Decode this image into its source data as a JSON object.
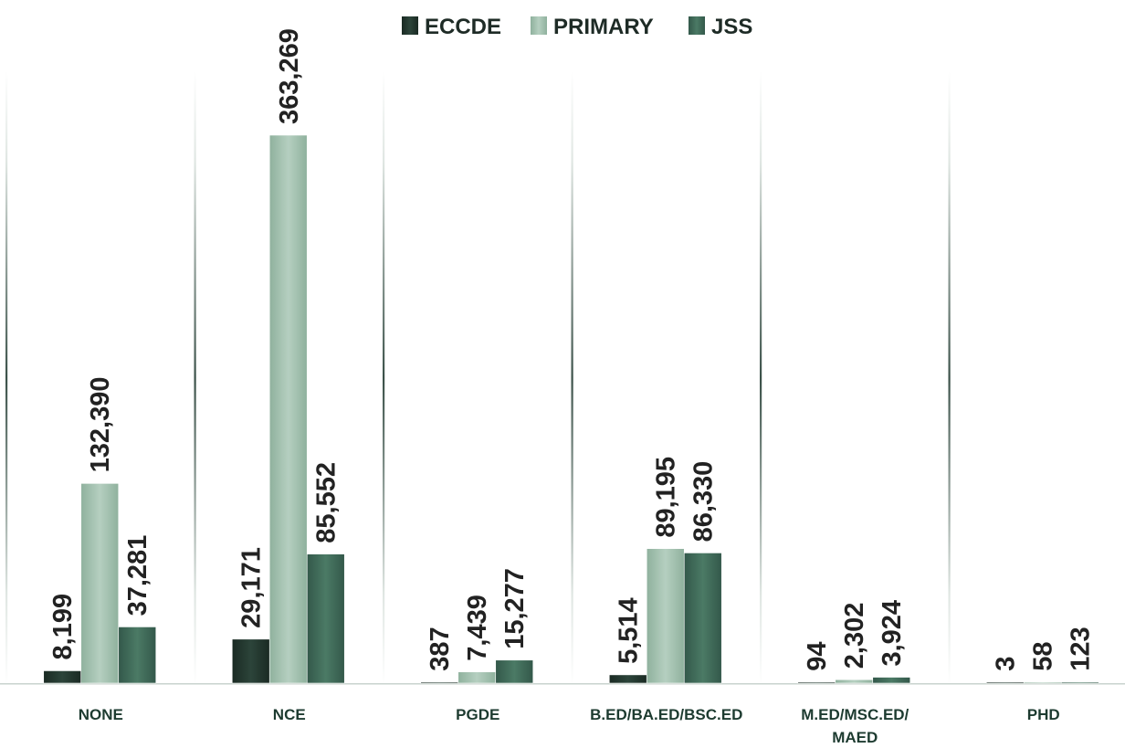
{
  "chart_data": {
    "type": "bar",
    "categories": [
      "NONE",
      "NCE",
      "PGDE",
      "B.ED/BA.ED/BSC.ED",
      "M.ED/MSC.ED/ MAED",
      "PHD"
    ],
    "category_lines": [
      [
        "NONE"
      ],
      [
        "NCE"
      ],
      [
        "PGDE"
      ],
      [
        "B.ED/BA.ED/BSC.ED"
      ],
      [
        "M.ED/MSC.ED/",
        "MAED"
      ],
      [
        "PHD"
      ]
    ],
    "series": [
      {
        "name": "ECCDE",
        "values": [
          8199,
          29171,
          387,
          5514,
          94,
          3
        ],
        "labels": [
          "8,199",
          "29,171",
          "387",
          "5,514",
          "94",
          "3"
        ],
        "color": "#243a31"
      },
      {
        "name": "PRIMARY",
        "values": [
          132390,
          363269,
          7439,
          89195,
          2302,
          58
        ],
        "labels": [
          "132,390",
          "363,269",
          "7,439",
          "89,195",
          "2,302",
          "58"
        ],
        "color": "#9fbfac"
      },
      {
        "name": "JSS",
        "values": [
          37281,
          85552,
          15277,
          86330,
          3924,
          123
        ],
        "labels": [
          "37,281",
          "85,552",
          "15,277",
          "86,330",
          "3,924",
          "123"
        ],
        "color": "#3f6a57"
      }
    ],
    "ylim": [
      0,
      363269
    ],
    "legend_position": "top",
    "data_labels": true,
    "data_label_orientation": "vertical",
    "grid": false
  }
}
